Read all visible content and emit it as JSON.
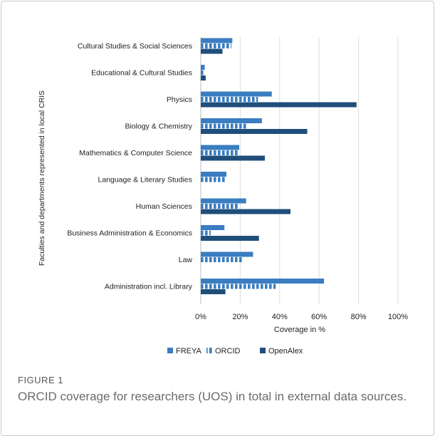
{
  "chart_data": {
    "type": "bar",
    "orientation": "horizontal",
    "categories": [
      "Cultural Studies & Social Sciences",
      "Educational & Cultural Studies",
      "Physics",
      "Biology & Chemistry",
      "Mathematics & Computer Science",
      "Language & Literary Studies",
      "Human Sciences",
      "Business Administration & Economics",
      "Law",
      "Administration incl. Library"
    ],
    "series": [
      {
        "name": "FREYA",
        "color": "#3a7dc0",
        "pattern": "solid",
        "values": [
          16,
          2,
          36,
          31,
          19.5,
          13,
          23,
          12,
          26.5,
          62.5
        ]
      },
      {
        "name": "ORCID",
        "color": "#3a7dc0",
        "pattern": "striped",
        "values": [
          15.5,
          2,
          29,
          23,
          19.5,
          13,
          19.5,
          5,
          21.5,
          38
        ]
      },
      {
        "name": "OpenAlex",
        "color": "#1f4e7a",
        "pattern": "solid",
        "values": [
          11,
          2.5,
          79,
          54,
          32.5,
          null,
          45.5,
          29.5,
          null,
          12.5
        ]
      }
    ],
    "xlabel": "Coverage in %",
    "ylabel": "Faculties and departments represented in local CRIS",
    "xlim": [
      0,
      100
    ],
    "xticks": [
      "0%",
      "20%",
      "40%",
      "60%",
      "80%",
      "100%"
    ],
    "grid": "vertical",
    "legend": "bottom"
  },
  "caption": {
    "label": "FIGURE 1",
    "text": "ORCID coverage for researchers (UOS) in total in external data sources."
  }
}
